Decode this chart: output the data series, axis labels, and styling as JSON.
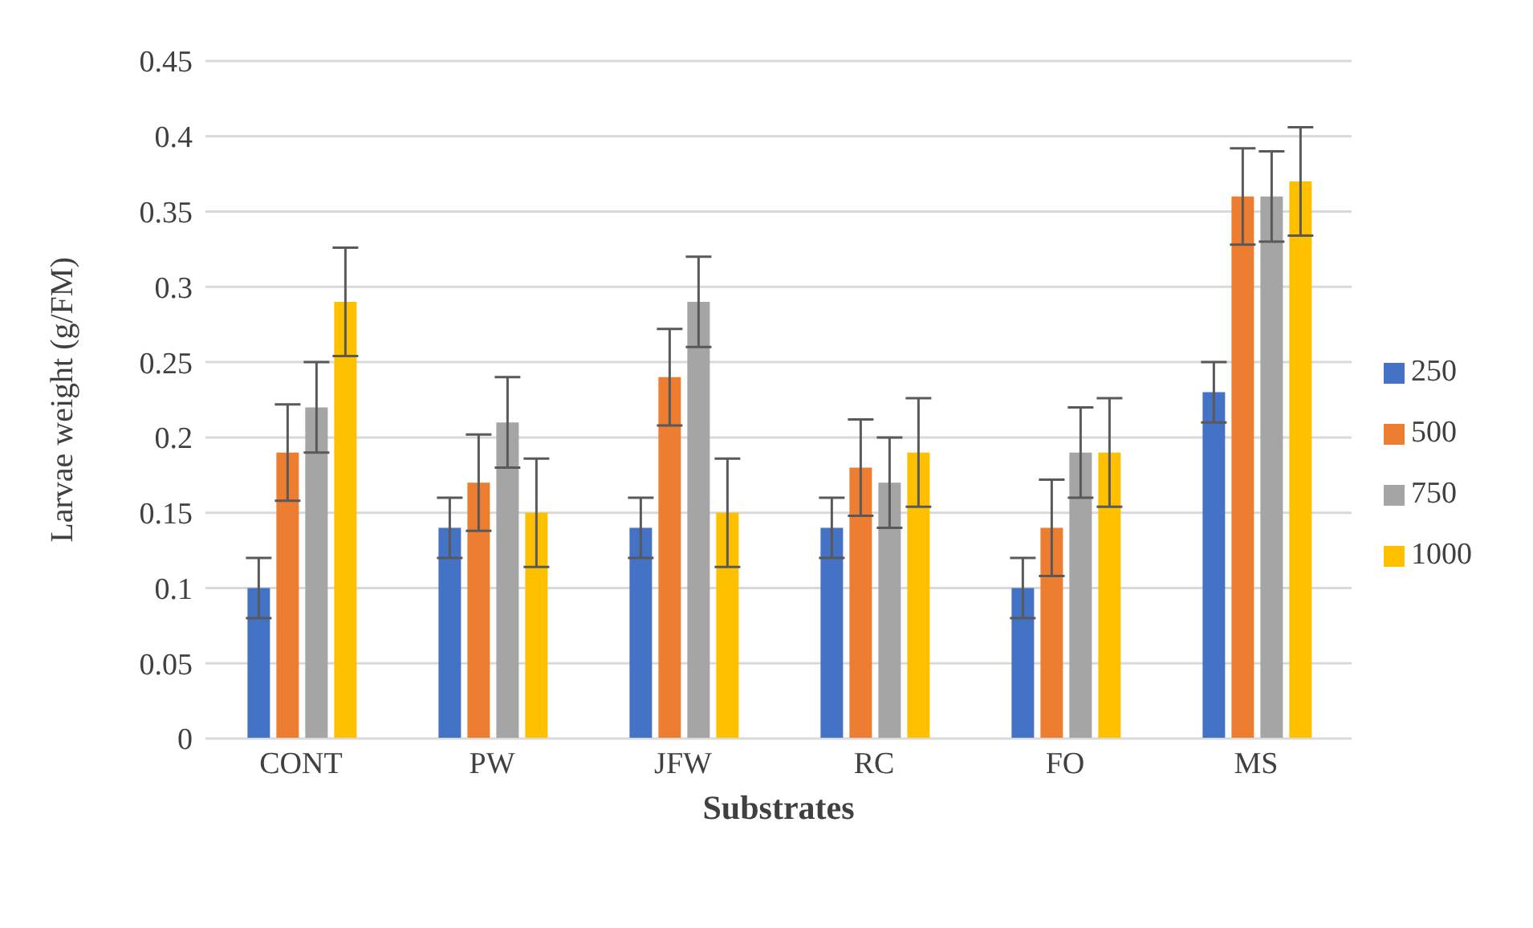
{
  "chart_data": {
    "type": "bar",
    "xlabel": "Substrates",
    "ylabel": "Larvae weight (g/FM)",
    "categories": [
      "CONT",
      "PW",
      "JFW",
      "RC",
      "FO",
      "MS"
    ],
    "series": [
      {
        "name": "250",
        "color": "#4472c4",
        "values": [
          0.1,
          0.14,
          0.14,
          0.14,
          0.1,
          0.23
        ],
        "errors": [
          0.02,
          0.02,
          0.02,
          0.02,
          0.02,
          0.02
        ]
      },
      {
        "name": "500",
        "color": "#ed7d31",
        "values": [
          0.19,
          0.17,
          0.24,
          0.18,
          0.14,
          0.36
        ],
        "errors": [
          0.032,
          0.032,
          0.032,
          0.032,
          0.032,
          0.032
        ]
      },
      {
        "name": "750",
        "color": "#a5a5a5",
        "values": [
          0.22,
          0.21,
          0.29,
          0.17,
          0.19,
          0.36
        ],
        "errors": [
          0.03,
          0.03,
          0.03,
          0.03,
          0.03,
          0.03
        ]
      },
      {
        "name": "1000",
        "color": "#ffc000",
        "values": [
          0.29,
          0.15,
          0.15,
          0.19,
          0.19,
          0.37
        ],
        "errors": [
          0.036,
          0.036,
          0.036,
          0.036,
          0.036,
          0.036
        ]
      }
    ],
    "ylim": [
      0,
      0.45
    ],
    "yticks": [
      0,
      0.05,
      0.1,
      0.15,
      0.2,
      0.25,
      0.3,
      0.35,
      0.4,
      0.45
    ],
    "grid": "y",
    "legend": "right"
  }
}
